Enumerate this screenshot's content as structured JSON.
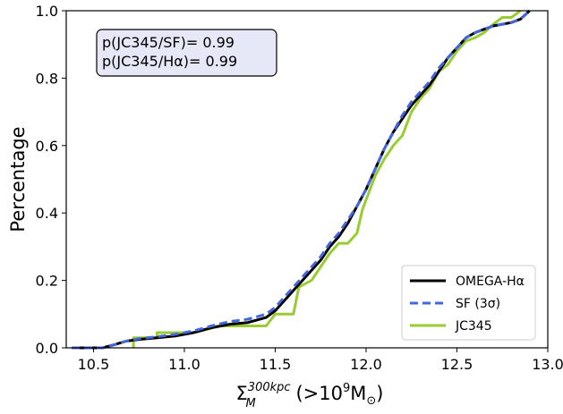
{
  "chart_data": {
    "type": "line",
    "xlabel_main": "Σ",
    "xlabel_sup": "300kpc",
    "xlabel_sub": "M",
    "xlabel_rest": " (>10",
    "xlabel_exp": "9",
    "xlabel_unit": "M",
    "xlabel_unit_sub": "⊙",
    "xlabel_close": ")",
    "ylabel": "Percentage",
    "xlim": [
      10.35,
      13.0
    ],
    "ylim": [
      0.0,
      1.0
    ],
    "xticks": [
      "10.5",
      "11.0",
      "11.5",
      "12.0",
      "12.5",
      "13.0"
    ],
    "yticks": [
      "0.0",
      "0.2",
      "0.4",
      "0.6",
      "0.8",
      "1.0"
    ],
    "grid": false,
    "legend_position": "lower-right",
    "annotation_lines": [
      "p(JC345/SF)= 0.99",
      "p(JC345/Hα)= 0.99"
    ],
    "annotation_position": "top-left",
    "series": [
      {
        "name": "OMEGA-Hα",
        "color": "#000000",
        "style": "solid",
        "x": [
          10.38,
          10.55,
          10.62,
          10.68,
          10.75,
          10.85,
          10.95,
          11.05,
          11.15,
          11.25,
          11.35,
          11.45,
          11.5,
          11.55,
          11.6,
          11.65,
          11.7,
          11.75,
          11.8,
          11.85,
          11.9,
          11.95,
          12.0,
          12.05,
          12.1,
          12.15,
          12.2,
          12.25,
          12.3,
          12.35,
          12.4,
          12.45,
          12.5,
          12.55,
          12.6,
          12.65,
          12.7,
          12.75,
          12.8,
          12.85,
          12.9
        ],
        "y": [
          0.0,
          0.0,
          0.01,
          0.02,
          0.025,
          0.03,
          0.035,
          0.045,
          0.06,
          0.07,
          0.075,
          0.09,
          0.11,
          0.14,
          0.17,
          0.2,
          0.23,
          0.26,
          0.3,
          0.33,
          0.37,
          0.42,
          0.47,
          0.53,
          0.59,
          0.64,
          0.68,
          0.72,
          0.75,
          0.78,
          0.82,
          0.86,
          0.89,
          0.92,
          0.935,
          0.945,
          0.955,
          0.96,
          0.965,
          0.975,
          1.0
        ]
      },
      {
        "name": "SF (3σ)",
        "color": "#4466dd",
        "style": "dashed",
        "x": [
          10.38,
          10.55,
          10.62,
          10.68,
          10.75,
          10.85,
          10.95,
          11.05,
          11.15,
          11.25,
          11.35,
          11.45,
          11.5,
          11.55,
          11.6,
          11.65,
          11.7,
          11.75,
          11.8,
          11.85,
          11.9,
          11.95,
          12.0,
          12.05,
          12.1,
          12.15,
          12.2,
          12.25,
          12.3,
          12.35,
          12.4,
          12.45,
          12.5,
          12.55,
          12.6,
          12.65,
          12.7,
          12.75,
          12.8,
          12.85,
          12.9
        ],
        "y": [
          0.0,
          0.0,
          0.01,
          0.02,
          0.027,
          0.033,
          0.04,
          0.05,
          0.065,
          0.078,
          0.085,
          0.1,
          0.12,
          0.15,
          0.18,
          0.21,
          0.24,
          0.27,
          0.31,
          0.34,
          0.38,
          0.42,
          0.47,
          0.53,
          0.59,
          0.64,
          0.69,
          0.73,
          0.76,
          0.79,
          0.83,
          0.86,
          0.89,
          0.92,
          0.935,
          0.945,
          0.955,
          0.96,
          0.965,
          0.975,
          1.0
        ]
      },
      {
        "name": "JC345",
        "color": "#99cc33",
        "style": "solid",
        "x": [
          10.72,
          10.72,
          10.85,
          10.85,
          11.0,
          11.05,
          11.2,
          11.2,
          11.45,
          11.5,
          11.5,
          11.6,
          11.63,
          11.7,
          11.75,
          11.8,
          11.85,
          11.9,
          11.95,
          11.98,
          12.05,
          12.1,
          12.15,
          12.2,
          12.25,
          12.3,
          12.35,
          12.4,
          12.45,
          12.5,
          12.55,
          12.6,
          12.65,
          12.7,
          12.75,
          12.8,
          12.85
        ],
        "y": [
          0.0,
          0.03,
          0.03,
          0.045,
          0.045,
          0.045,
          0.065,
          0.065,
          0.065,
          0.1,
          0.1,
          0.1,
          0.18,
          0.2,
          0.24,
          0.28,
          0.31,
          0.31,
          0.34,
          0.41,
          0.51,
          0.56,
          0.6,
          0.63,
          0.7,
          0.74,
          0.77,
          0.82,
          0.84,
          0.88,
          0.91,
          0.92,
          0.935,
          0.96,
          0.98,
          0.98,
          1.0
        ]
      }
    ]
  }
}
